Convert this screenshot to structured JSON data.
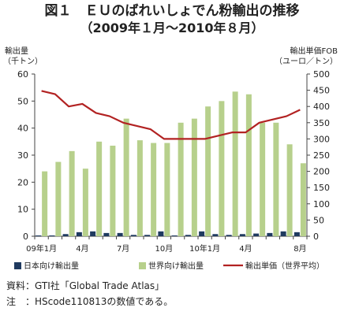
{
  "title_line1": "図１　ＥＵのばれいしょでん粉輸出の推移",
  "title_line2": "（2009年１月～2010年８月）",
  "chart_data": {
    "type": "bar",
    "left_axis_label_line1": "輸出量",
    "left_axis_label_line2": "（千トン）",
    "right_axis_label_line1": "輸出単価FOB",
    "right_axis_label_line2": "（ユーロ／トン）",
    "ylim_left": [
      0,
      60
    ],
    "yticks_left": [
      0,
      10,
      20,
      30,
      40,
      50,
      60
    ],
    "ylim_right": [
      0,
      500
    ],
    "yticks_right": [
      0,
      50,
      100,
      150,
      200,
      250,
      300,
      350,
      400,
      450,
      500
    ],
    "x_tick_labels": [
      "09年1月",
      "",
      "",
      "4月",
      "",
      "",
      "7月",
      "",
      "",
      "10月",
      "",
      "",
      "10年1月",
      "",
      "",
      "4月",
      "",
      "",
      "",
      "8月"
    ],
    "series": [
      {
        "name": "日本向け輸出量",
        "kind": "bar",
        "color": "#1f3a5f",
        "values": [
          0.3,
          0.3,
          0.8,
          1.5,
          1.8,
          1.2,
          1.2,
          0.5,
          0.5,
          1.8,
          0.3,
          0.5,
          1.8,
          0.8,
          0.5,
          0.8,
          1.0,
          1.2,
          1.8,
          1.5
        ]
      },
      {
        "name": "世界向け輸出量",
        "kind": "bar",
        "color": "#b7d08c",
        "values": [
          24,
          27.5,
          31.5,
          25,
          35,
          33.5,
          43.5,
          35.5,
          34.5,
          34.5,
          42,
          43.5,
          48,
          50,
          53.5,
          52.5,
          42,
          42,
          34,
          27
        ]
      },
      {
        "name": "輸出単価（世界平均）",
        "kind": "line",
        "axis": "right",
        "color": "#b22222",
        "values": [
          448,
          438,
          400,
          408,
          380,
          370,
          350,
          340,
          330,
          300,
          300,
          300,
          300,
          310,
          320,
          320,
          350,
          360,
          370,
          390
        ]
      }
    ]
  },
  "footnotes": {
    "source": "資料：GTI社「Global Trade Atlas」",
    "note": "注　：HScode110813の数値である。"
  }
}
